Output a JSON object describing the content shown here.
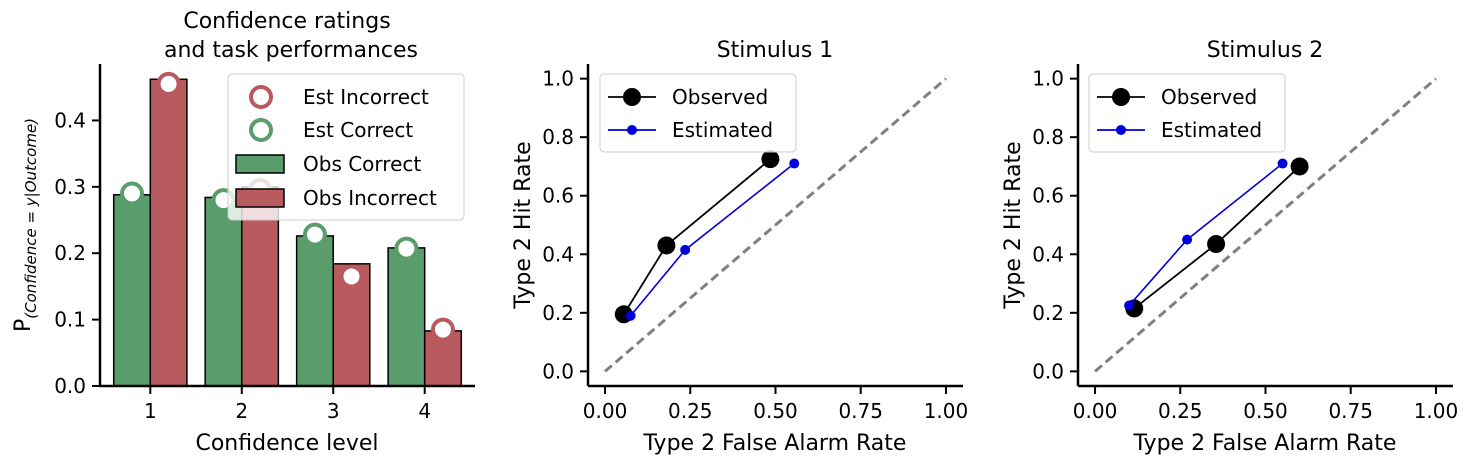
{
  "chart_data": [
    {
      "type": "bar",
      "title_lines": [
        "Confidence ratings",
        "and task performances"
      ],
      "xlabel": "Confidence level",
      "ylabel_main": "P",
      "ylabel_sub": "(Confidence = y|Outcome)",
      "categories": [
        "1",
        "2",
        "3",
        "4"
      ],
      "ylim": [
        0,
        0.485
      ],
      "yticks": [
        0.0,
        0.1,
        0.2,
        0.3,
        0.4
      ],
      "ytick_labels": [
        "0.0",
        "0.1",
        "0.2",
        "0.3",
        "0.4"
      ],
      "series": [
        {
          "name": "Obs Correct",
          "kind": "bar",
          "color": "#5a9c6b",
          "values": [
            0.288,
            0.284,
            0.226,
            0.208
          ]
        },
        {
          "name": "Obs Incorrect",
          "kind": "bar",
          "color": "#b85a5e",
          "values": [
            0.462,
            0.3,
            0.184,
            0.083
          ]
        },
        {
          "name": "Est Incorrect",
          "kind": "marker",
          "color": "#b85a5e",
          "values": [
            0.455,
            0.295,
            0.165,
            0.085
          ]
        },
        {
          "name": "Est Correct",
          "kind": "marker",
          "color": "#5a9c6b",
          "values": [
            0.29,
            0.28,
            0.228,
            0.207
          ]
        }
      ],
      "legend": {
        "placement": "top-right",
        "order": [
          "Est Incorrect",
          "Est Correct",
          "Obs Correct",
          "Obs Incorrect"
        ]
      }
    },
    {
      "type": "line",
      "title": "Stimulus 1",
      "xlabel": "Type 2 False Alarm Rate",
      "ylabel": "Type 2 Hit Rate",
      "xlim": [
        -0.05,
        1.05
      ],
      "ylim": [
        -0.05,
        1.05
      ],
      "xticks": [
        0.0,
        0.25,
        0.5,
        0.75,
        1.0
      ],
      "xtick_labels": [
        "0.00",
        "0.25",
        "0.50",
        "0.75",
        "1.00"
      ],
      "yticks": [
        0.0,
        0.2,
        0.4,
        0.6,
        0.8,
        1.0
      ],
      "ytick_labels": [
        "0.0",
        "0.2",
        "0.4",
        "0.6",
        "0.8",
        "1.0"
      ],
      "diagonal": true,
      "series": [
        {
          "name": "Observed",
          "color": "#000000",
          "marker": "large",
          "x": [
            0.055,
            0.18,
            0.485
          ],
          "y": [
            0.195,
            0.43,
            0.725
          ]
        },
        {
          "name": "Estimated",
          "color": "#0000dd",
          "marker": "small",
          "x": [
            0.075,
            0.235,
            0.555
          ],
          "y": [
            0.19,
            0.415,
            0.71
          ]
        }
      ],
      "legend": {
        "placement": "top-left"
      }
    },
    {
      "type": "line",
      "title": "Stimulus 2",
      "xlabel": "Type 2 False Alarm Rate",
      "ylabel": "Type 2 Hit Rate",
      "xlim": [
        -0.05,
        1.05
      ],
      "ylim": [
        -0.05,
        1.05
      ],
      "xticks": [
        0.0,
        0.25,
        0.5,
        0.75,
        1.0
      ],
      "xtick_labels": [
        "0.00",
        "0.25",
        "0.50",
        "0.75",
        "1.00"
      ],
      "yticks": [
        0.0,
        0.2,
        0.4,
        0.6,
        0.8,
        1.0
      ],
      "ytick_labels": [
        "0.0",
        "0.2",
        "0.4",
        "0.6",
        "0.8",
        "1.0"
      ],
      "diagonal": true,
      "series": [
        {
          "name": "Observed",
          "color": "#000000",
          "marker": "large",
          "x": [
            0.115,
            0.355,
            0.6
          ],
          "y": [
            0.215,
            0.435,
            0.7
          ]
        },
        {
          "name": "Estimated",
          "color": "#0000dd",
          "marker": "small",
          "x": [
            0.1,
            0.27,
            0.55
          ],
          "y": [
            0.225,
            0.45,
            0.71
          ]
        }
      ],
      "legend": {
        "placement": "top-left"
      }
    }
  ]
}
